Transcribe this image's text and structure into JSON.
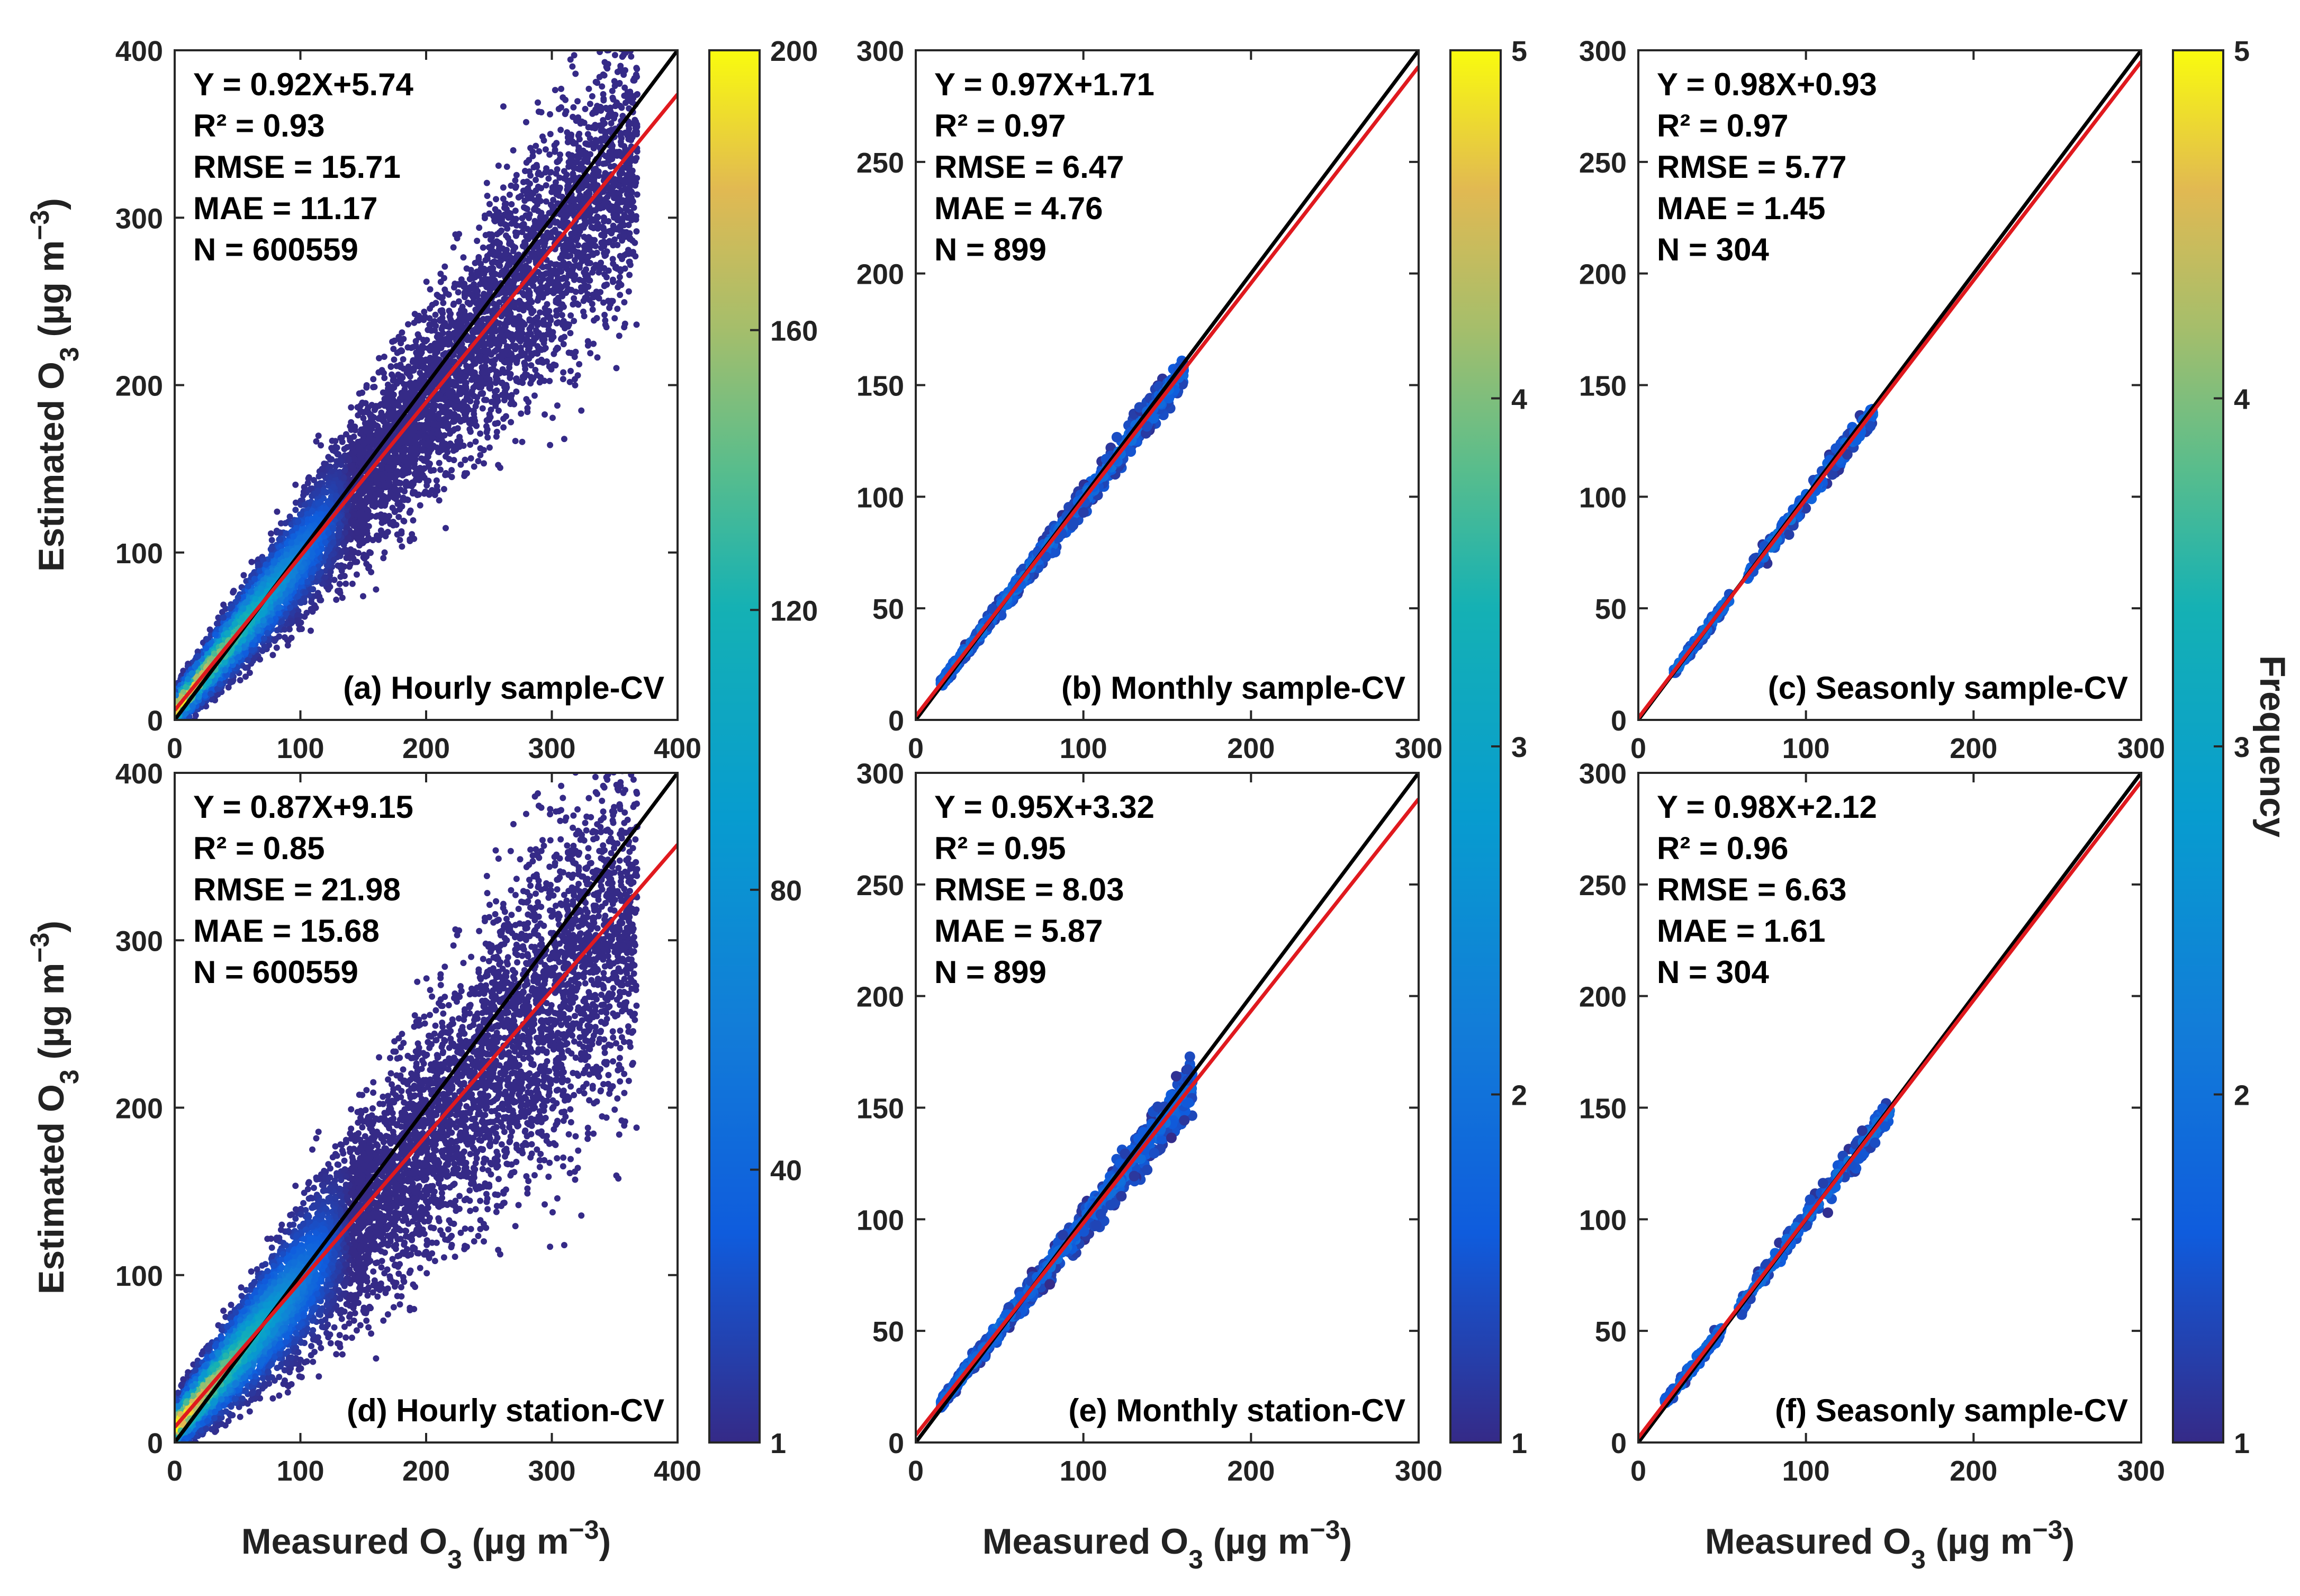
{
  "figure": {
    "xlabel": {
      "main": "Measured O",
      "sub": "3",
      "unit": " (µg m",
      "sup": "−3",
      "close": ")"
    },
    "ylabel": {
      "main": "Estimated O",
      "sub": "3",
      "unit": " (µg m",
      "sup": "−3",
      "close": ")"
    },
    "colorbar_label": "Frequency"
  },
  "colorbars": [
    {
      "id": "hourly",
      "ticks": [
        1,
        40,
        80,
        120,
        160,
        200
      ],
      "range": [
        1,
        200
      ]
    },
    {
      "id": "monthly",
      "ticks": [
        1,
        2,
        3,
        4,
        5
      ],
      "range": [
        1,
        5
      ]
    },
    {
      "id": "seasonly",
      "ticks": [
        1,
        2,
        3,
        4,
        5
      ],
      "range": [
        1,
        5
      ]
    }
  ],
  "colors": {
    "one_to_one": "#000000",
    "fit": "#e0191e",
    "low": "#352a87",
    "mid": "#20b2aa",
    "high": "#f9fb0e"
  },
  "chart_data": [
    {
      "type": "scatter",
      "panel": "(a) Hourly sample-CV",
      "xlim": [
        0,
        400
      ],
      "ylim": [
        0,
        400
      ],
      "xticks": [
        0,
        100,
        200,
        300,
        400
      ],
      "yticks": [
        0,
        100,
        200,
        300,
        400
      ],
      "fit": {
        "slope": 0.92,
        "intercept": 5.74
      },
      "stats": [
        "Y = 0.92X+5.74",
        "R² = 0.93",
        "RMSE = 15.71",
        "MAE = 11.17",
        "N = 600559"
      ],
      "points": {
        "n_shown": 600559,
        "range": [
          0,
          400
        ],
        "spread": 0.13
      }
    },
    {
      "type": "scatter",
      "panel": "(b) Monthly sample-CV",
      "xlim": [
        0,
        300
      ],
      "ylim": [
        0,
        300
      ],
      "xticks": [
        0,
        100,
        200,
        300
      ],
      "yticks": [
        0,
        50,
        100,
        150,
        200,
        250,
        300
      ],
      "fit": {
        "slope": 0.97,
        "intercept": 1.71
      },
      "stats": [
        "Y = 0.97X+1.71",
        "R² = 0.97",
        "RMSE = 6.47",
        "MAE = 4.76",
        "N = 899"
      ],
      "points": {
        "n_shown": 899,
        "range": [
          15,
          160
        ],
        "spread": 0.06
      }
    },
    {
      "type": "scatter",
      "panel": "(c) Seasonly sample-CV",
      "xlim": [
        0,
        300
      ],
      "ylim": [
        0,
        300
      ],
      "xticks": [
        0,
        100,
        200,
        300
      ],
      "yticks": [
        0,
        50,
        100,
        150,
        200,
        250,
        300
      ],
      "fit": {
        "slope": 0.98,
        "intercept": 0.93
      },
      "stats": [
        "Y = 0.98X+0.93",
        "R² = 0.97",
        "RMSE = 5.77",
        "MAE = 1.45",
        "N = 304"
      ],
      "points": {
        "n_shown": 304,
        "range": [
          20,
          140
        ],
        "spread": 0.05
      }
    },
    {
      "type": "scatter",
      "panel": "(d) Hourly station-CV",
      "xlim": [
        0,
        400
      ],
      "ylim": [
        0,
        400
      ],
      "xticks": [
        0,
        100,
        200,
        300,
        400
      ],
      "yticks": [
        0,
        100,
        200,
        300,
        400
      ],
      "fit": {
        "slope": 0.87,
        "intercept": 9.15
      },
      "stats": [
        "Y = 0.87X+9.15",
        "R² = 0.85",
        "RMSE = 21.98",
        "MAE = 15.68",
        "N = 600559"
      ],
      "points": {
        "n_shown": 600559,
        "range": [
          0,
          400
        ],
        "spread": 0.17
      }
    },
    {
      "type": "scatter",
      "panel": "(e) Monthly station-CV",
      "xlim": [
        0,
        300
      ],
      "ylim": [
        0,
        300
      ],
      "xticks": [
        0,
        100,
        200,
        300
      ],
      "yticks": [
        0,
        50,
        100,
        150,
        200,
        250,
        300
      ],
      "fit": {
        "slope": 0.95,
        "intercept": 3.32
      },
      "stats": [
        "Y = 0.95X+3.32",
        "R² = 0.95",
        "RMSE = 8.03",
        "MAE = 5.87",
        "N = 899"
      ],
      "points": {
        "n_shown": 899,
        "range": [
          15,
          165
        ],
        "spread": 0.08
      }
    },
    {
      "type": "scatter",
      "panel": "(f) Seasonly sample-CV",
      "xlim": [
        0,
        300
      ],
      "ylim": [
        0,
        300
      ],
      "xticks": [
        0,
        100,
        200,
        300
      ],
      "yticks": [
        0,
        50,
        100,
        150,
        200,
        250,
        300
      ],
      "fit": {
        "slope": 0.98,
        "intercept": 2.12
      },
      "stats": [
        "Y = 0.98X+2.12",
        "R² = 0.96",
        "RMSE = 6.63",
        "MAE = 1.61",
        "N = 304"
      ],
      "points": {
        "n_shown": 304,
        "range": [
          15,
          150
        ],
        "spread": 0.06
      }
    }
  ]
}
